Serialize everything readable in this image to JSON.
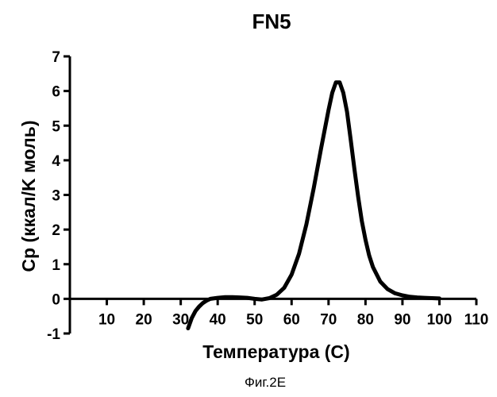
{
  "chart_data": {
    "type": "line",
    "title": "FN5",
    "xlabel": "Температура (C)",
    "ylabel": "Cp (ккал/K моль)",
    "xlim": [
      0,
      110
    ],
    "ylim": [
      -1,
      7
    ],
    "x_ticks": [
      10,
      20,
      30,
      40,
      50,
      60,
      70,
      80,
      90,
      100,
      110
    ],
    "y_ticks": [
      -1,
      0,
      1,
      2,
      3,
      4,
      5,
      6,
      7
    ],
    "grid": false,
    "legend": "none",
    "series": [
      {
        "color": "#000000",
        "points": [
          [
            32,
            -0.85
          ],
          [
            33,
            -0.55
          ],
          [
            34,
            -0.35
          ],
          [
            35,
            -0.22
          ],
          [
            36,
            -0.12
          ],
          [
            37,
            -0.05
          ],
          [
            38,
            0.0
          ],
          [
            40,
            0.03
          ],
          [
            42,
            0.05
          ],
          [
            44,
            0.05
          ],
          [
            46,
            0.04
          ],
          [
            48,
            0.03
          ],
          [
            50,
            0.0
          ],
          [
            52,
            -0.02
          ],
          [
            54,
            0.02
          ],
          [
            56,
            0.12
          ],
          [
            58,
            0.32
          ],
          [
            60,
            0.7
          ],
          [
            62,
            1.3
          ],
          [
            64,
            2.15
          ],
          [
            66,
            3.2
          ],
          [
            68,
            4.35
          ],
          [
            70,
            5.45
          ],
          [
            71,
            5.95
          ],
          [
            72,
            6.25
          ],
          [
            73,
            6.25
          ],
          [
            74,
            5.95
          ],
          [
            75,
            5.4
          ],
          [
            76,
            4.6
          ],
          [
            77,
            3.75
          ],
          [
            78,
            2.95
          ],
          [
            79,
            2.25
          ],
          [
            80,
            1.7
          ],
          [
            81,
            1.25
          ],
          [
            82,
            0.92
          ],
          [
            84,
            0.5
          ],
          [
            86,
            0.28
          ],
          [
            88,
            0.16
          ],
          [
            90,
            0.1
          ],
          [
            92,
            0.06
          ],
          [
            94,
            0.04
          ],
          [
            96,
            0.03
          ],
          [
            98,
            0.02
          ],
          [
            100,
            0.01
          ]
        ]
      }
    ]
  },
  "caption": "Фиг.2E"
}
